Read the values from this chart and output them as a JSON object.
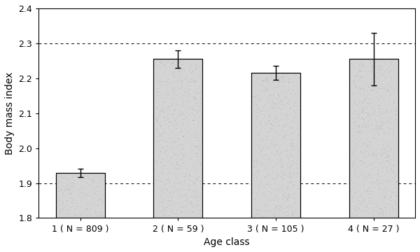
{
  "categories": [
    "1 ( N = 809 )",
    "2 ( N = 59 )",
    "3 ( N = 105 )",
    "4 ( N = 27 )"
  ],
  "values": [
    1.93,
    2.255,
    2.215,
    2.255
  ],
  "errors": [
    0.012,
    0.025,
    0.02,
    0.075
  ],
  "xlabel": "Age class",
  "ylabel": "Body mass index",
  "ylim": [
    1.8,
    2.4
  ],
  "yticks": [
    1.8,
    1.9,
    2.0,
    2.1,
    2.2,
    2.3,
    2.4
  ],
  "hlines": [
    1.9,
    2.3
  ],
  "hline_style": "--",
  "bar_color": "#d4d4d4",
  "bar_edge_color": "#000000",
  "bar_width": 0.5,
  "figsize": [
    6.0,
    3.6
  ],
  "dpi": 100,
  "background_color": "#ffffff"
}
